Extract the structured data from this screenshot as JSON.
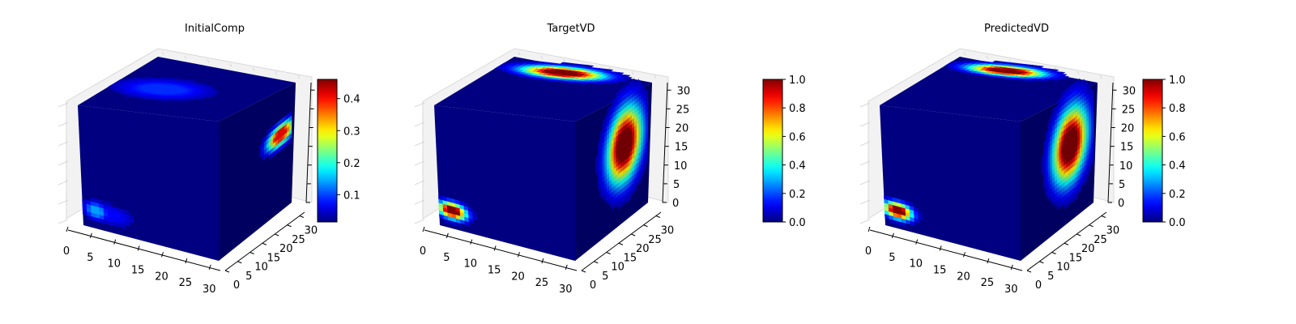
{
  "chart_data": [
    {
      "type": "voxel-3d",
      "title": "InitialComp",
      "x_ticks": [
        0,
        5,
        10,
        15,
        20,
        25,
        30
      ],
      "y_ticks": [
        0,
        5,
        10,
        15,
        20,
        25,
        30
      ],
      "z_ticks": [],
      "axis_range": [
        0,
        32
      ],
      "colormap": "jet",
      "colorbar": {
        "min": 0.015,
        "max": 0.46,
        "ticks": [
          0.1,
          0.2,
          0.3,
          0.4
        ]
      },
      "blobs": [
        {
          "face": "top",
          "u": 0.35,
          "v": 0.45,
          "ru": 0.45,
          "rv": 0.25,
          "value": 0.09
        },
        {
          "face": "front",
          "u": 0.1,
          "v": 0.15,
          "ru": 0.12,
          "rv": 0.1,
          "value": 0.14
        },
        {
          "face": "front",
          "u": 0.2,
          "v": 0.15,
          "ru": 0.25,
          "rv": 0.12,
          "value": 0.07
        },
        {
          "face": "side",
          "u": 0.85,
          "v": 0.55,
          "ru": 0.25,
          "rv": 0.1,
          "value": 0.4
        }
      ]
    },
    {
      "type": "voxel-3d",
      "title": "TargetVD",
      "x_ticks": [
        0,
        5,
        10,
        15,
        20,
        25,
        30
      ],
      "y_ticks": [
        0,
        5,
        10,
        15,
        20,
        25,
        30
      ],
      "z_ticks": [
        0,
        5,
        10,
        15,
        20,
        25,
        30
      ],
      "axis_range": [
        0,
        32
      ],
      "colormap": "jet",
      "colorbar": {
        "min": 0.0,
        "max": 1.0,
        "ticks": [
          0.0,
          0.2,
          0.4,
          0.6,
          0.8,
          1.0
        ]
      },
      "blobs": [
        {
          "face": "top",
          "u": 0.45,
          "v": 0.82,
          "ru": 0.38,
          "rv": 0.14,
          "value": 1.0
        },
        {
          "face": "front",
          "u": 0.1,
          "v": 0.15,
          "ru": 0.14,
          "rv": 0.09,
          "value": 1.0
        },
        {
          "face": "side",
          "u": 0.68,
          "v": 0.55,
          "ru": 0.32,
          "rv": 0.35,
          "value": 1.0
        }
      ]
    },
    {
      "type": "voxel-3d",
      "title": "PredictedVD",
      "x_ticks": [
        0,
        5,
        10,
        15,
        20,
        25,
        30
      ],
      "y_ticks": [
        0,
        5,
        10,
        15,
        20,
        25,
        30
      ],
      "z_ticks": [
        0,
        5,
        10,
        15,
        20,
        25,
        30
      ],
      "axis_range": [
        0,
        32
      ],
      "colormap": "jet",
      "colorbar": {
        "min": 0.0,
        "max": 1.0,
        "ticks": [
          0.0,
          0.2,
          0.4,
          0.6,
          0.8,
          1.0
        ]
      },
      "blobs": [
        {
          "face": "top",
          "u": 0.42,
          "v": 0.85,
          "ru": 0.35,
          "rv": 0.12,
          "value": 1.0
        },
        {
          "face": "front",
          "u": 0.1,
          "v": 0.15,
          "ru": 0.14,
          "rv": 0.09,
          "value": 1.0
        },
        {
          "face": "side",
          "u": 0.68,
          "v": 0.55,
          "ru": 0.32,
          "rv": 0.35,
          "value": 1.0
        }
      ]
    }
  ]
}
